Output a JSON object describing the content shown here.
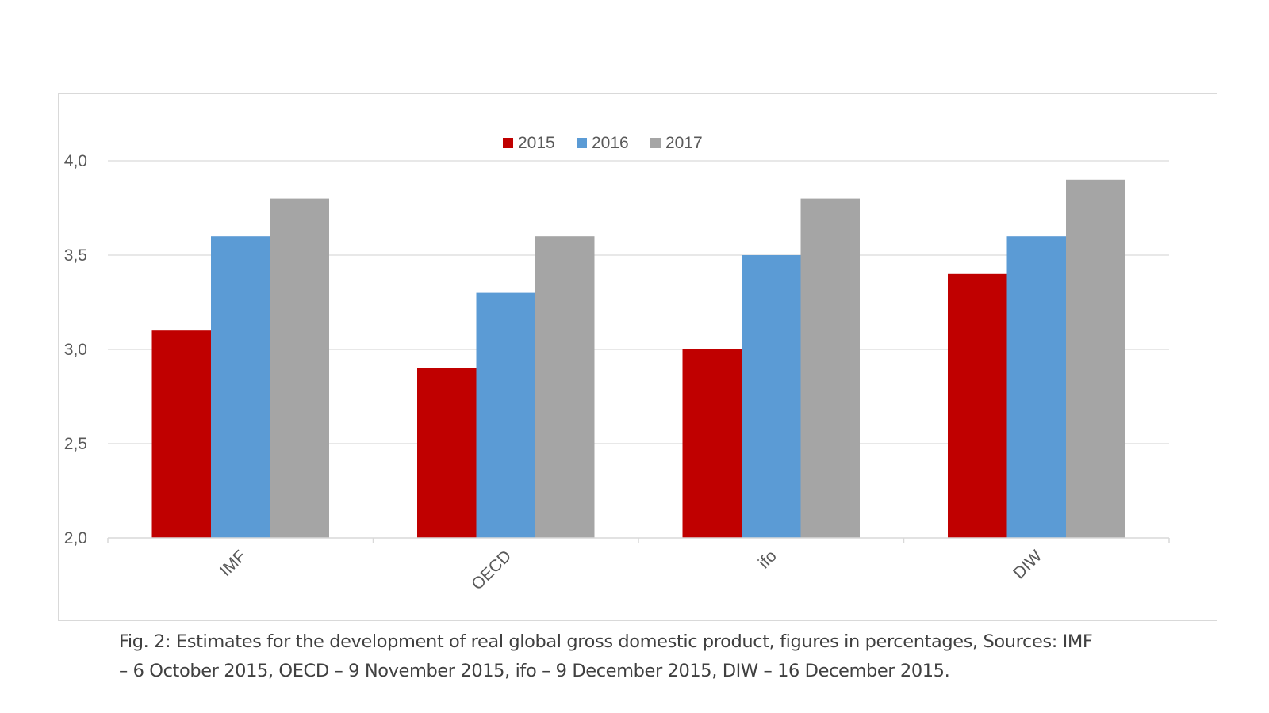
{
  "chart_data": {
    "type": "bar",
    "categories": [
      "IMF",
      "OECD",
      "ifo",
      "DIW"
    ],
    "series": [
      {
        "name": "2015",
        "color": "#c00000",
        "values": [
          3.1,
          2.9,
          3.0,
          3.4
        ]
      },
      {
        "name": "2016",
        "color": "#5b9bd5",
        "values": [
          3.6,
          3.3,
          3.5,
          3.6
        ]
      },
      {
        "name": "2017",
        "color": "#a5a5a5",
        "values": [
          3.8,
          3.6,
          3.8,
          3.9
        ]
      }
    ],
    "yticks": [
      "4,0",
      "3,5",
      "3,0",
      "2,5",
      "2,0"
    ],
    "ytick_values": [
      4.0,
      3.5,
      3.0,
      2.5,
      2.0
    ],
    "ylim": [
      2.0,
      4.0
    ],
    "grid": true,
    "legend_position": "top-center"
  },
  "caption": {
    "line1": "Fig. 2: Estimates for the development of real global gross domestic product, figures in percentages, Sources: IMF",
    "line2": "– 6 October 2015, OECD – 9 November 2015, ifo – 9 December 2015, DIW – 16 December 2015."
  }
}
